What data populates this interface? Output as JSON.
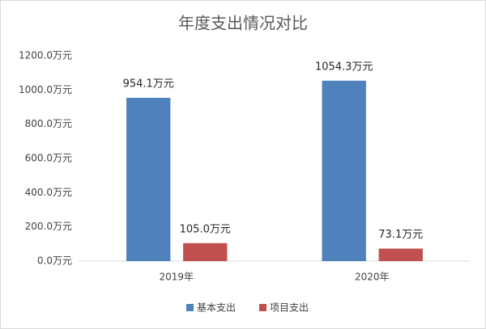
{
  "chart_data": {
    "type": "bar",
    "title": "年度支出情况对比",
    "categories": [
      "2019年",
      "2020年"
    ],
    "series": [
      {
        "name": "基本支出",
        "color": "#4f81bd",
        "values": [
          954.1,
          1054.3
        ],
        "value_labels": [
          "954.1万元",
          "1054.3万元"
        ]
      },
      {
        "name": "项目支出",
        "color": "#c0504d",
        "values": [
          105.0,
          73.1
        ],
        "value_labels": [
          "105.0万元",
          "73.1万元"
        ]
      }
    ],
    "ylim": [
      0,
      1200
    ],
    "yticks": [
      {
        "value": 0,
        "label": "0.0万元"
      },
      {
        "value": 200,
        "label": "200.0万元"
      },
      {
        "value": 400,
        "label": "400.0万元"
      },
      {
        "value": 600,
        "label": "600.0万元"
      },
      {
        "value": 800,
        "label": "800.0万元"
      },
      {
        "value": 1000,
        "label": "1000.0万元"
      },
      {
        "value": 1200,
        "label": "1200.0万元"
      }
    ],
    "grid": false,
    "legend": "bottom"
  }
}
